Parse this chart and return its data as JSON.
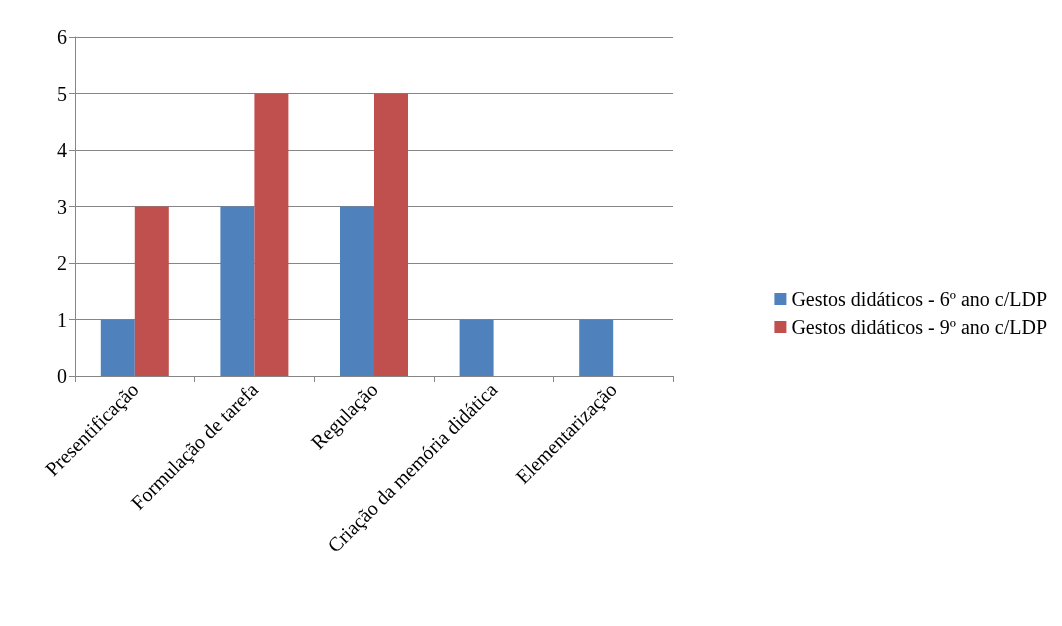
{
  "chart_data": {
    "type": "bar",
    "categories": [
      "Presentificação",
      "Formulação de tarefa",
      "Regulação",
      "Criação da memória didática",
      "Elementarização"
    ],
    "series": [
      {
        "name": "Gestos didáticos - 6º ano c/LDP",
        "color": "#4f81bd",
        "values": [
          1,
          3,
          3,
          1,
          1
        ]
      },
      {
        "name": "Gestos didáticos - 9º ano c/LDP",
        "color": "#c0504d",
        "values": [
          3,
          5,
          5,
          0,
          0
        ]
      }
    ],
    "ylim": [
      0,
      6
    ],
    "yticks": [
      0,
      1,
      2,
      3,
      4,
      5,
      6
    ],
    "grid": "y",
    "legend": "right"
  }
}
